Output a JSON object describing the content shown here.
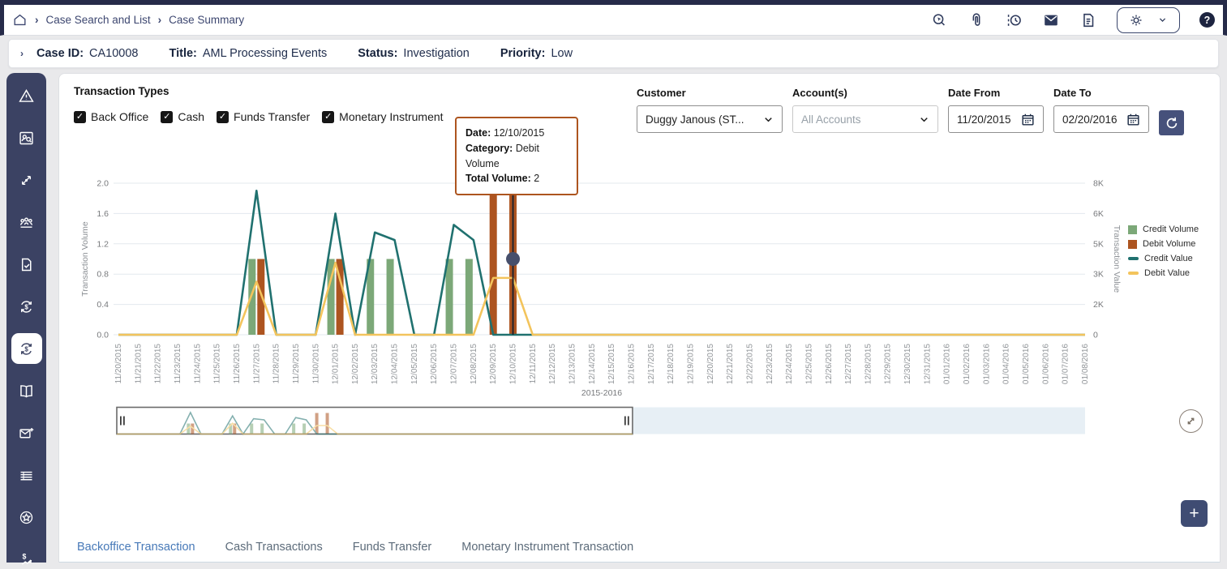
{
  "topbar": {
    "breadcrumbs": [
      {
        "label": "Case Search and List"
      },
      {
        "label": "Case Summary"
      }
    ],
    "icons": [
      "home-icon",
      "record-search-icon",
      "attachment-icon",
      "history-icon",
      "mail-icon",
      "document-icon",
      "settings-gear-icon",
      "chevron-down-icon",
      "help-icon"
    ],
    "help_glyph": "?"
  },
  "case_bar": {
    "fields": [
      {
        "label": "Case ID:",
        "value": "CA10008"
      },
      {
        "label": "Title:",
        "value": "AML Processing Events"
      },
      {
        "label": "Status:",
        "value": "Investigation"
      },
      {
        "label": "Priority:",
        "value": "Low"
      }
    ]
  },
  "sidebar": {
    "icons": [
      "warning-triangle-icon",
      "person-search-icon",
      "network-link-icon",
      "group-icon",
      "document-check-icon",
      "money-cycle-icon",
      "transactions-cycle-icon",
      "book-icon",
      "mail-plus-icon",
      "table-icon",
      "star-badge-icon",
      "money-flow-icon"
    ],
    "active_index": 6
  },
  "filters": {
    "transaction_types_label": "Transaction Types",
    "checkboxes": [
      {
        "label": "Back Office",
        "checked": true
      },
      {
        "label": "Cash",
        "checked": true
      },
      {
        "label": "Funds Transfer",
        "checked": true
      },
      {
        "label": "Monetary Instrument",
        "checked": true
      }
    ],
    "check_glyph": "✓",
    "customer": {
      "label": "Customer",
      "value": "Duggy Janous (ST..."
    },
    "accounts": {
      "label": "Account(s)",
      "value": "All Accounts"
    },
    "date_from": {
      "label": "Date From",
      "value": "11/20/2015"
    },
    "date_to": {
      "label": "Date To",
      "value": "02/20/2016"
    }
  },
  "tooltip": {
    "date_label": "Date:",
    "date": "12/10/2015",
    "category_label": "Category:",
    "category": "Debit Volume",
    "volume_label": "Total Volume:",
    "volume": "2"
  },
  "chart_data": {
    "type": "combo",
    "title": "2015-2016",
    "x": [
      "11/20/2015",
      "11/21/2015",
      "11/22/2015",
      "11/23/2015",
      "11/24/2015",
      "11/25/2015",
      "11/26/2015",
      "11/27/2015",
      "11/28/2015",
      "11/29/2015",
      "11/30/2015",
      "12/01/2015",
      "12/02/2015",
      "12/03/2015",
      "12/04/2015",
      "12/05/2015",
      "12/06/2015",
      "12/07/2015",
      "12/08/2015",
      "12/09/2015",
      "12/10/2015",
      "12/11/2015",
      "12/12/2015",
      "12/13/2015",
      "12/14/2015",
      "12/15/2015",
      "12/16/2015",
      "12/17/2015",
      "12/18/2015",
      "12/19/2015",
      "12/20/2015",
      "12/21/2015",
      "12/22/2015",
      "12/23/2015",
      "12/24/2015",
      "12/25/2015",
      "12/26/2015",
      "12/27/2015",
      "12/28/2015",
      "12/29/2015",
      "12/30/2015",
      "12/31/2015",
      "01/01/2016",
      "01/02/2016",
      "01/03/2016",
      "01/04/2016",
      "01/05/2016",
      "01/06/2016",
      "01/07/2016",
      "01/08/2016"
    ],
    "left_axis": {
      "label": "Transaction Volume",
      "min": 0,
      "max": 2,
      "ticks": [
        0,
        0.4,
        0.8,
        1.2,
        1.6,
        2.0
      ],
      "tick_labels": [
        "0.0",
        "0.4",
        "0.8",
        "1.2",
        "1.6",
        "2.0"
      ]
    },
    "right_axis": {
      "label": "Transaction Value",
      "min": 0,
      "max": 8000,
      "tick_labels": [
        "0",
        "2K",
        "3K",
        "5K",
        "6K",
        "8K"
      ]
    },
    "series": [
      {
        "name": "Credit Volume",
        "type": "bar",
        "axis": "left",
        "color": "#7ca878",
        "values": [
          0,
          0,
          0,
          0,
          0,
          0,
          0,
          1,
          0,
          0,
          0,
          1,
          0,
          1,
          1,
          0,
          0,
          1,
          1,
          0,
          0,
          0,
          0,
          0,
          0,
          0,
          0,
          0,
          0,
          0,
          0,
          0,
          0,
          0,
          0,
          0,
          0,
          0,
          0,
          0,
          0,
          0,
          0,
          0,
          0,
          0,
          0,
          0,
          0,
          0
        ]
      },
      {
        "name": "Debit Volume",
        "type": "bar",
        "axis": "left",
        "color": "#ad5420",
        "values": [
          0,
          0,
          0,
          0,
          0,
          0,
          0,
          1,
          0,
          0,
          0,
          1,
          0,
          0,
          0,
          0,
          0,
          0,
          0,
          2,
          2,
          0,
          0,
          0,
          0,
          0,
          0,
          0,
          0,
          0,
          0,
          0,
          0,
          0,
          0,
          0,
          0,
          0,
          0,
          0,
          0,
          0,
          0,
          0,
          0,
          0,
          0,
          0,
          0,
          0
        ]
      },
      {
        "name": "Credit Value",
        "type": "line",
        "axis": "right",
        "color": "#20716f",
        "values": [
          0,
          0,
          0,
          0,
          0,
          0,
          0,
          7600,
          0,
          0,
          0,
          6400,
          0,
          5400,
          5000,
          0,
          0,
          5800,
          5000,
          0,
          0,
          0,
          0,
          0,
          0,
          0,
          0,
          0,
          0,
          0,
          0,
          0,
          0,
          0,
          0,
          0,
          0,
          0,
          0,
          0,
          0,
          0,
          0,
          0,
          0,
          0,
          0,
          0,
          0,
          0
        ]
      },
      {
        "name": "Debit Value",
        "type": "line",
        "axis": "right",
        "color": "#f3c45c",
        "values": [
          0,
          0,
          0,
          0,
          0,
          0,
          0,
          2800,
          0,
          0,
          0,
          3800,
          0,
          0,
          0,
          0,
          0,
          0,
          0,
          3000,
          3000,
          0,
          0,
          0,
          0,
          0,
          0,
          0,
          0,
          0,
          0,
          0,
          0,
          0,
          0,
          0,
          0,
          0,
          0,
          0,
          0,
          0,
          0,
          0,
          0,
          0,
          0,
          0,
          0,
          0
        ]
      }
    ],
    "hover": {
      "x_index": 20,
      "marker_value": 1.0,
      "marker_color": "#474f6b"
    },
    "legend_position": "right",
    "grid": true,
    "brush": {
      "total_days": 93,
      "window_start_index": 0,
      "window_end_index": 49
    }
  },
  "buttons": {
    "add_label": "+"
  },
  "tabs": [
    {
      "label": "Backoffice Transaction",
      "active": true
    },
    {
      "label": "Cash Transactions",
      "active": false
    },
    {
      "label": "Funds Transfer",
      "active": false
    },
    {
      "label": "Monetary Instrument Transaction",
      "active": false
    }
  ],
  "colors": {
    "navy": "#3b4263",
    "top_strip": "#262b49",
    "tooltip_border": "#ad551f",
    "credit_volume": "#7ca878",
    "debit_volume": "#ad5420",
    "credit_value": "#20716f",
    "debit_value": "#f3c45c",
    "active_tab": "#4779b8",
    "brush_track": "#e7eff5"
  }
}
